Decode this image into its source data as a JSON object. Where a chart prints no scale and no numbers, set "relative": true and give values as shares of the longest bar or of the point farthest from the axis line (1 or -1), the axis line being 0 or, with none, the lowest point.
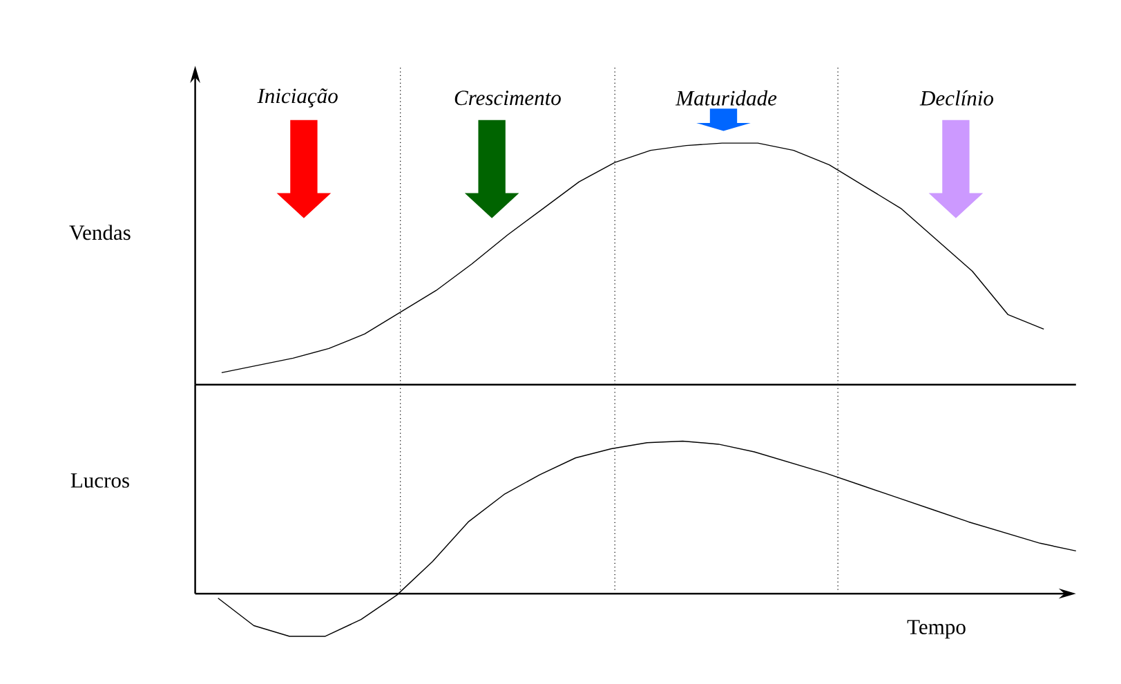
{
  "chart_data": [
    {
      "type": "line",
      "ylabel": "Vendas",
      "relative": true,
      "categories": [
        null,
        null,
        null,
        null,
        null,
        null,
        null,
        null,
        null,
        null,
        null,
        null,
        null,
        null,
        null,
        null,
        null,
        null,
        null,
        null,
        null,
        null,
        null,
        null
      ],
      "series": [
        {
          "color": "#000000",
          "values": [
            0.05,
            0.08,
            0.11,
            0.15,
            0.21,
            0.3,
            0.39,
            0.5,
            0.62,
            0.73,
            0.84,
            0.92,
            0.97,
            0.99,
            1.0,
            1.0,
            0.97,
            0.91,
            0.82,
            0.73,
            0.6,
            0.47,
            0.29,
            0.23
          ]
        }
      ],
      "annotations": [
        "Iniciação",
        "Crescimento",
        "Maturidade",
        "Declínio"
      ]
    },
    {
      "type": "line",
      "ylabel": "Lucros",
      "xlabel": "Tempo",
      "relative": true,
      "categories": [
        null,
        null,
        null,
        null,
        null,
        null,
        null,
        null,
        null,
        null,
        null,
        null,
        null,
        null,
        null,
        null,
        null,
        null,
        null,
        null,
        null,
        null,
        null,
        null,
        null
      ],
      "series": [
        {
          "color": "#000000",
          "values": [
            -0.03,
            -0.21,
            -0.28,
            -0.28,
            -0.17,
            -0.01,
            0.21,
            0.47,
            0.65,
            0.78,
            0.89,
            0.95,
            0.99,
            1.0,
            0.98,
            0.93,
            0.86,
            0.79,
            0.71,
            0.63,
            0.55,
            0.47,
            0.4,
            0.33,
            0.28
          ]
        }
      ]
    }
  ]
}
